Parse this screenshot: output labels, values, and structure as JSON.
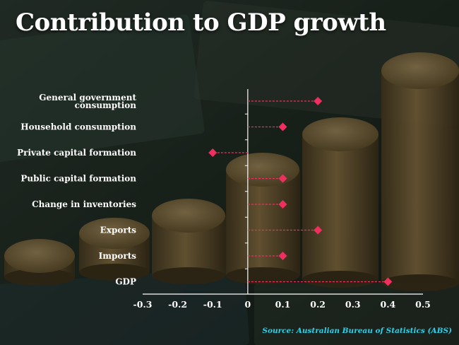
{
  "title": "Contribution to GDP growth",
  "source": "Source: Australian Bureau of Statistics (ABS)",
  "colors": {
    "marker": "#ee2f5f",
    "axis": "#ffffff",
    "source": "#2fd0e8"
  },
  "chart_data": {
    "type": "dot",
    "title": "Contribution to GDP growth",
    "categories": [
      [
        "General government",
        "consumption"
      ],
      [
        "Household consumption"
      ],
      [
        "Private capital formation"
      ],
      [
        "Public capital formation"
      ],
      [
        "Change in inventories"
      ],
      [
        "Exports"
      ],
      [
        "Imports"
      ],
      [
        "GDP"
      ]
    ],
    "values": [
      0.2,
      0.1,
      -0.1,
      0.1,
      0.1,
      0.2,
      0.1,
      0.4
    ],
    "xlim": [
      -0.3,
      0.5
    ],
    "xticks": [
      -0.3,
      -0.2,
      -0.1,
      0,
      0.1,
      0.2,
      0.3,
      0.4,
      0.5
    ],
    "xtick_labels": [
      "-0.3",
      "-0.2",
      "-0.1",
      "0",
      "0.1",
      "0.2",
      "0.3",
      "0.4",
      "0.5"
    ],
    "xlabel": "",
    "ylabel": ""
  }
}
